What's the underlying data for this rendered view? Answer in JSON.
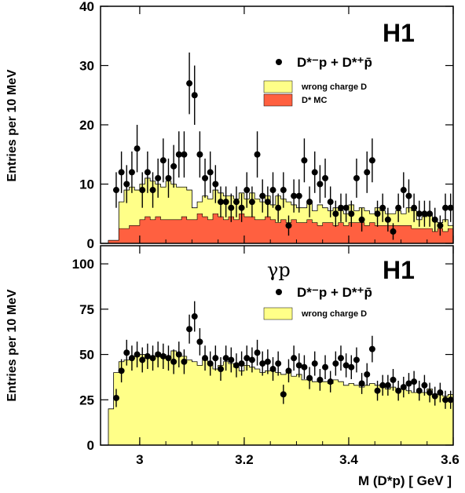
{
  "colors": {
    "wrong_charge": "#ffff88",
    "dstar_mc": "#ff6040",
    "points": "#000000",
    "background": "#ffffff"
  },
  "xlabel": "M (D*p)  [ GeV ]",
  "chart_data": [
    {
      "type": "histogram",
      "panel": "top",
      "experiment_label": "H1",
      "process_label": "",
      "ylabel": "Entries per 10 MeV",
      "xlim": [
        2.925,
        3.6
      ],
      "ylim": [
        0,
        40
      ],
      "x_ticks": [
        3.0,
        3.2,
        3.4,
        3.6
      ],
      "y_ticks": [
        0,
        10,
        20,
        30,
        40
      ],
      "y_tick_labels": [
        "0",
        "10",
        "20",
        "30",
        "40"
      ],
      "legend": {
        "data_label": "D*⁻p + D*⁺p̄",
        "wrong_charge_label": "wrong charge D",
        "mc_label": "D* MC"
      },
      "bin_edges": [
        2.94,
        2.95,
        2.96,
        2.97,
        2.98,
        2.99,
        3.0,
        3.01,
        3.02,
        3.03,
        3.04,
        3.05,
        3.06,
        3.07,
        3.08,
        3.09,
        3.1,
        3.11,
        3.12,
        3.13,
        3.14,
        3.15,
        3.16,
        3.17,
        3.18,
        3.19,
        3.2,
        3.21,
        3.22,
        3.23,
        3.24,
        3.25,
        3.26,
        3.27,
        3.28,
        3.29,
        3.3,
        3.31,
        3.32,
        3.33,
        3.34,
        3.35,
        3.36,
        3.37,
        3.38,
        3.39,
        3.4,
        3.41,
        3.42,
        3.43,
        3.44,
        3.45,
        3.46,
        3.47,
        3.48,
        3.49,
        3.5,
        3.51,
        3.52,
        3.53,
        3.54,
        3.55,
        3.56,
        3.57,
        3.58,
        3.59,
        3.6
      ],
      "wrong_charge_values": [
        0.5,
        0.5,
        7,
        9,
        9.5,
        9,
        10,
        11,
        10.5,
        10,
        9.5,
        10.5,
        10,
        9.5,
        9.5,
        9,
        6,
        7,
        8,
        7.5,
        9,
        8.5,
        8,
        8,
        7.5,
        8.5,
        7.5,
        8.5,
        7.5,
        7,
        8,
        6.5,
        8,
        7.5,
        7,
        6.5,
        6,
        6,
        7,
        5.5,
        6.5,
        6,
        5.5,
        6,
        5.5,
        5,
        6.5,
        5.5,
        6,
        5.5,
        5,
        6,
        5.5,
        5,
        5,
        5.5,
        5,
        6,
        5.5,
        4,
        4.5,
        5,
        4,
        3.5,
        4,
        3
      ],
      "mc_values": [
        0.5,
        0.5,
        2.5,
        2.5,
        3,
        3,
        4,
        4.5,
        4,
        4.5,
        4,
        4,
        4,
        4,
        4.5,
        4,
        4,
        5,
        4.5,
        4,
        5,
        4.5,
        4,
        4.5,
        4,
        5,
        4.5,
        4.5,
        4,
        4,
        4.5,
        4,
        3.5,
        4,
        3.5,
        4,
        3.5,
        3.5,
        4,
        3.5,
        3,
        3.5,
        3.5,
        3,
        3.5,
        3,
        3.5,
        3.5,
        3.5,
        3,
        3.5,
        3,
        3,
        3,
        3,
        3,
        3,
        3,
        2.5,
        2.5,
        2.5,
        2.5,
        2,
        2.5,
        2,
        2.5
      ],
      "points": {
        "x": [
          2.955,
          2.965,
          2.975,
          2.985,
          2.995,
          3.005,
          3.015,
          3.025,
          3.035,
          3.045,
          3.055,
          3.065,
          3.075,
          3.085,
          3.095,
          3.105,
          3.115,
          3.125,
          3.135,
          3.145,
          3.155,
          3.165,
          3.175,
          3.185,
          3.195,
          3.205,
          3.215,
          3.225,
          3.235,
          3.245,
          3.255,
          3.265,
          3.275,
          3.285,
          3.295,
          3.305,
          3.315,
          3.325,
          3.335,
          3.345,
          3.355,
          3.365,
          3.375,
          3.385,
          3.395,
          3.405,
          3.415,
          3.425,
          3.435,
          3.445,
          3.455,
          3.465,
          3.475,
          3.485,
          3.495,
          3.505,
          3.515,
          3.525,
          3.535,
          3.545,
          3.555,
          3.565,
          3.575,
          3.585,
          3.595
        ],
        "y": [
          9,
          12,
          10,
          12,
          16,
          9,
          12,
          9,
          11,
          14,
          11,
          13,
          15,
          15,
          27,
          25,
          15,
          11,
          12,
          10,
          7,
          7,
          6,
          7,
          6,
          9,
          7,
          15,
          8,
          7,
          9,
          6,
          9,
          3,
          8,
          8,
          14,
          7,
          12,
          10,
          11,
          7,
          5,
          6,
          6,
          5,
          11,
          4,
          12,
          14,
          5,
          6,
          4,
          2,
          6,
          9,
          8,
          6,
          5,
          5,
          5,
          4,
          3,
          6,
          6
        ],
        "err": [
          3,
          3.5,
          3.2,
          3.5,
          4,
          3,
          3.5,
          3,
          3.3,
          3.7,
          3.3,
          3.6,
          3.9,
          3.9,
          5.2,
          5,
          3.9,
          3.3,
          3.5,
          3.2,
          2.6,
          2.6,
          2.4,
          2.6,
          2.4,
          3,
          2.6,
          3.9,
          2.8,
          2.6,
          3,
          2.4,
          3,
          1.7,
          2.8,
          2.8,
          3.7,
          2.6,
          3.5,
          3.2,
          3.3,
          2.6,
          2.2,
          2.4,
          2.4,
          2.2,
          3.3,
          2,
          3.5,
          3.7,
          2.2,
          2.4,
          2,
          1.4,
          2.4,
          3,
          2.8,
          2.4,
          2.2,
          2.2,
          2.2,
          2,
          1.7,
          2.4,
          2.4
        ]
      }
    },
    {
      "type": "histogram",
      "panel": "bottom",
      "experiment_label": "H1",
      "process_label": "γp",
      "ylabel": "Entries per 10 MeV",
      "xlim": [
        2.925,
        3.6
      ],
      "ylim": [
        0,
        110
      ],
      "x_ticks": [
        3.0,
        3.2,
        3.4,
        3.6
      ],
      "x_tick_labels": [
        "3",
        "3.2",
        "3.4",
        "3.6"
      ],
      "y_ticks": [
        0,
        25,
        50,
        75,
        100
      ],
      "y_tick_labels": [
        "0",
        "25",
        "50",
        "75",
        "100"
      ],
      "legend": {
        "data_label": "D*⁻p + D*⁺p̄",
        "wrong_charge_label": "wrong charge D"
      },
      "bin_edges": [
        2.94,
        2.95,
        2.96,
        2.97,
        2.98,
        2.99,
        3.0,
        3.01,
        3.02,
        3.03,
        3.04,
        3.05,
        3.06,
        3.07,
        3.08,
        3.09,
        3.1,
        3.11,
        3.12,
        3.13,
        3.14,
        3.15,
        3.16,
        3.17,
        3.18,
        3.19,
        3.2,
        3.21,
        3.22,
        3.23,
        3.24,
        3.25,
        3.26,
        3.27,
        3.28,
        3.29,
        3.3,
        3.31,
        3.32,
        3.33,
        3.34,
        3.35,
        3.36,
        3.37,
        3.38,
        3.39,
        3.4,
        3.41,
        3.42,
        3.43,
        3.44,
        3.45,
        3.46,
        3.47,
        3.48,
        3.49,
        3.5,
        3.51,
        3.52,
        3.53,
        3.54,
        3.55,
        3.56,
        3.57,
        3.58,
        3.59,
        3.6
      ],
      "wrong_charge_values": [
        20,
        40,
        46,
        47,
        48,
        49,
        50,
        48,
        49,
        51,
        50,
        48,
        52,
        50,
        49,
        47,
        46,
        44,
        48,
        45,
        42,
        44,
        46,
        45,
        43,
        41,
        44,
        43,
        42,
        40,
        41,
        42,
        40,
        39,
        40,
        38,
        39,
        36,
        37,
        35,
        36,
        35,
        34,
        36,
        35,
        33,
        34,
        33,
        32,
        33,
        34,
        33,
        32,
        31,
        32,
        30,
        31,
        30,
        29,
        30,
        29,
        31,
        28,
        29,
        27,
        28
      ],
      "points": {
        "x": [
          2.955,
          2.965,
          2.975,
          2.985,
          2.995,
          3.005,
          3.015,
          3.025,
          3.035,
          3.045,
          3.055,
          3.065,
          3.075,
          3.085,
          3.095,
          3.105,
          3.115,
          3.125,
          3.135,
          3.145,
          3.155,
          3.165,
          3.175,
          3.185,
          3.195,
          3.205,
          3.215,
          3.225,
          3.235,
          3.245,
          3.255,
          3.265,
          3.275,
          3.285,
          3.295,
          3.305,
          3.315,
          3.325,
          3.335,
          3.345,
          3.355,
          3.365,
          3.375,
          3.385,
          3.395,
          3.405,
          3.415,
          3.425,
          3.435,
          3.445,
          3.455,
          3.465,
          3.475,
          3.485,
          3.495,
          3.505,
          3.515,
          3.525,
          3.535,
          3.545,
          3.555,
          3.565,
          3.575,
          3.585,
          3.595
        ],
        "y": [
          26,
          41,
          51,
          48,
          50,
          47,
          49,
          48,
          50,
          49,
          48,
          46,
          50,
          46,
          64,
          71,
          57,
          48,
          45,
          48,
          42,
          48,
          47,
          44,
          45,
          48,
          47,
          51,
          45,
          46,
          42,
          45,
          28,
          41,
          48,
          44,
          43,
          37,
          45,
          36,
          43,
          35,
          45,
          48,
          44,
          43,
          47,
          34,
          39,
          53,
          30,
          33,
          33,
          36,
          30,
          32,
          34,
          35,
          30,
          33,
          29,
          27,
          29,
          25,
          25
        ],
        "err": [
          5,
          6.4,
          7.1,
          6.9,
          7.1,
          6.9,
          7,
          6.9,
          7.1,
          7,
          6.9,
          6.8,
          7.1,
          6.8,
          8,
          8.4,
          7.5,
          6.9,
          6.7,
          6.9,
          6.5,
          6.9,
          6.9,
          6.6,
          6.7,
          6.9,
          6.9,
          7.1,
          6.7,
          6.8,
          6.5,
          6.7,
          5.3,
          6.4,
          6.9,
          6.6,
          6.6,
          6.1,
          6.7,
          6,
          6.6,
          5.9,
          6.7,
          6.9,
          6.6,
          6.6,
          6.9,
          5.8,
          6.2,
          7.3,
          5.5,
          5.7,
          5.7,
          6,
          5.5,
          5.7,
          5.8,
          5.9,
          5.5,
          5.7,
          5.4,
          5.2,
          5.4,
          5,
          5
        ]
      }
    }
  ]
}
